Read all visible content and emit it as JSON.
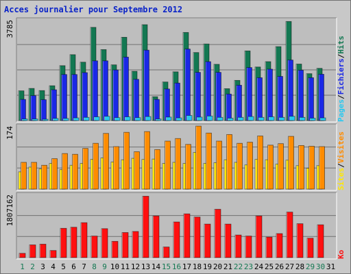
{
  "title": "Acces journalier pour Septembre 2012",
  "colors": {
    "background": "#c8c8c8",
    "panel": "#bebebe",
    "hits": "#137852",
    "files": "#1a28e6",
    "pages": "#28c8f0",
    "visits": "#ff8c00",
    "sites": "#ffe800",
    "kbytes": "#ff1010",
    "title": "#0a23c8",
    "weekend_day": "#137852"
  },
  "chart_data": [
    {
      "type": "bar",
      "name": "hits-files-pages",
      "categories": [
        "1",
        "2",
        "3",
        "4",
        "5",
        "6",
        "7",
        "8",
        "9",
        "10",
        "11",
        "12",
        "13",
        "14",
        "15",
        "16",
        "17",
        "18",
        "19",
        "20",
        "21",
        "22",
        "23",
        "24",
        "25",
        "26",
        "27",
        "28",
        "29",
        "30",
        "31"
      ],
      "ymax_label": "3785",
      "ylim": [
        0,
        3785
      ],
      "legend": [
        "Pages",
        "/",
        "Fichiers",
        "/",
        "Hits"
      ],
      "series": [
        {
          "name": "Hits",
          "values": [
            1110,
            1200,
            1120,
            1300,
            2050,
            2460,
            2180,
            3480,
            2650,
            2080,
            3110,
            1840,
            3580,
            890,
            1440,
            1820,
            3290,
            2540,
            2860,
            2100,
            1190,
            1500,
            2600,
            2000,
            2200,
            2760,
            3700,
            2110,
            1750,
            1950,
            0
          ]
        },
        {
          "name": "Fichiers",
          "values": [
            790,
            930,
            780,
            1150,
            1720,
            1720,
            1790,
            2230,
            2230,
            1890,
            2370,
            1540,
            2630,
            790,
            1180,
            1400,
            2670,
            1800,
            2200,
            1800,
            990,
            1320,
            1980,
            1600,
            1920,
            1650,
            2260,
            1880,
            1600,
            1730,
            0
          ]
        },
        {
          "name": "Pages",
          "values": [
            60,
            60,
            50,
            80,
            80,
            100,
            120,
            140,
            160,
            110,
            140,
            110,
            150,
            60,
            130,
            100,
            190,
            130,
            170,
            120,
            90,
            120,
            150,
            120,
            140,
            120,
            160,
            120,
            90,
            100,
            0
          ]
        }
      ]
    },
    {
      "type": "bar",
      "name": "visits-sites",
      "categories": [
        "1",
        "2",
        "3",
        "4",
        "5",
        "6",
        "7",
        "8",
        "9",
        "10",
        "11",
        "12",
        "13",
        "14",
        "15",
        "16",
        "17",
        "18",
        "19",
        "20",
        "21",
        "22",
        "23",
        "24",
        "25",
        "26",
        "27",
        "28",
        "29",
        "30",
        "31"
      ],
      "ymax_label": "174",
      "ylim": [
        0,
        174
      ],
      "legend": [
        "Sites",
        "/",
        "Visites"
      ],
      "series": [
        {
          "name": "Visites",
          "values": [
            73,
            73,
            65,
            83,
            97,
            95,
            111,
            125,
            152,
            116,
            155,
            102,
            157,
            108,
            131,
            138,
            122,
            172,
            153,
            131,
            149,
            125,
            128,
            145,
            120,
            124,
            144,
            119,
            117,
            116,
            0
          ]
        },
        {
          "name": "Sites",
          "values": [
            47,
            60,
            55,
            70,
            53,
            65,
            70,
            81,
            85,
            74,
            80,
            84,
            81,
            82,
            70,
            73,
            70,
            100,
            70,
            72,
            80,
            73,
            66,
            81,
            80,
            68,
            79,
            64,
            57,
            64,
            0
          ]
        }
      ]
    },
    {
      "type": "bar",
      "name": "kbytes",
      "categories": [
        "1",
        "2",
        "3",
        "4",
        "5",
        "6",
        "7",
        "8",
        "9",
        "10",
        "11",
        "12",
        "13",
        "14",
        "15",
        "16",
        "17",
        "18",
        "19",
        "20",
        "21",
        "22",
        "23",
        "24",
        "25",
        "26",
        "27",
        "28",
        "29",
        "30",
        "31"
      ],
      "ymax_label": "1807162",
      "ylim": [
        0,
        1807162
      ],
      "legend": [
        "Ko"
      ],
      "series": [
        {
          "name": "Ko",
          "values": [
            120000,
            360000,
            380000,
            200000,
            830000,
            860000,
            990000,
            610000,
            820000,
            460000,
            710000,
            740000,
            1740000,
            1180000,
            300000,
            1010000,
            1240000,
            1150000,
            950000,
            1370000,
            950000,
            640000,
            610000,
            1180000,
            580000,
            680000,
            1290000,
            960000,
            550000,
            930000,
            0
          ]
        }
      ]
    }
  ]
}
